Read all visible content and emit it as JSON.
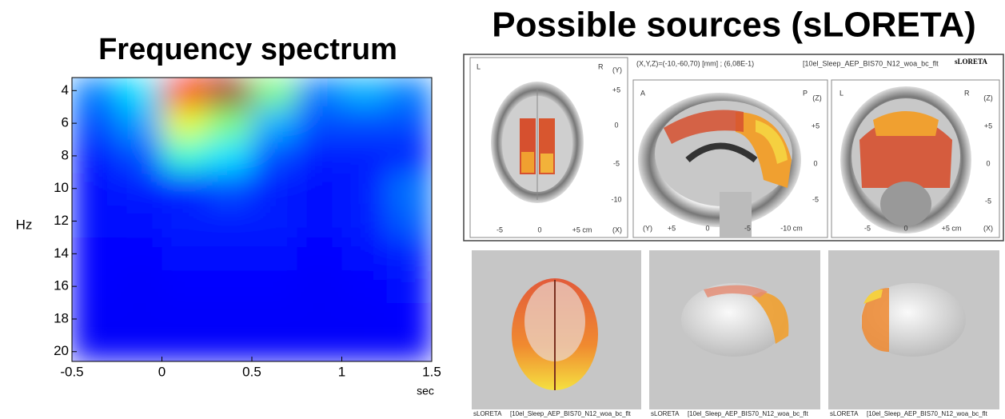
{
  "chart_data": {
    "type": "heatmap",
    "title": "Frequency spectrum",
    "xlabel": "sec",
    "ylabel": "Hz",
    "colormap": "jet",
    "y_inverted": true,
    "xlim": [
      -0.5,
      1.5
    ],
    "xticks": [
      -0.5,
      0,
      0.5,
      1,
      1.5
    ],
    "ylim": [
      3.2,
      20.6
    ],
    "yticks": [
      4,
      6,
      8,
      10,
      12,
      14,
      16,
      18,
      20
    ],
    "xbins": [
      -0.5,
      -0.25,
      0,
      0.25,
      0.5,
      0.75,
      1,
      1.25,
      1.5
    ],
    "ybins": [
      3.2,
      5,
      7,
      9,
      11,
      13,
      15,
      17,
      19,
      20.6
    ],
    "z": [
      [
        0.25,
        0.35,
        0.85,
        0.97,
        0.5,
        0.25,
        0.3,
        0.25
      ],
      [
        0.2,
        0.28,
        0.6,
        0.5,
        0.3,
        0.2,
        0.2,
        0.2
      ],
      [
        0.15,
        0.2,
        0.42,
        0.35,
        0.2,
        0.15,
        0.15,
        0.15
      ],
      [
        0.14,
        0.15,
        0.16,
        0.2,
        0.15,
        0.14,
        0.15,
        0.24
      ],
      [
        0.14,
        0.14,
        0.15,
        0.15,
        0.15,
        0.14,
        0.15,
        0.22
      ],
      [
        0.13,
        0.13,
        0.14,
        0.14,
        0.14,
        0.13,
        0.14,
        0.16
      ],
      [
        0.13,
        0.12,
        0.13,
        0.13,
        0.13,
        0.12,
        0.13,
        0.14
      ],
      [
        0.12,
        0.12,
        0.12,
        0.12,
        0.12,
        0.12,
        0.12,
        0.13
      ],
      [
        0.12,
        0.12,
        0.12,
        0.12,
        0.12,
        0.12,
        0.12,
        0.12
      ]
    ]
  },
  "sloreta": {
    "title": "Possible sources (sLORETA)",
    "header": {
      "coords": "(X,Y,Z)=(-10,-60,70) [mm] ; (6,08E-1)",
      "file": "[10el_Sleep_AEP_BIS70_N12_woa_bc_flt",
      "logo": "sLORETA"
    },
    "slices": [
      {
        "corner_left": "L",
        "corner_right": "R",
        "axis_right": "(Y)",
        "right_ticks": [
          "+5",
          "0",
          "-5",
          "-10"
        ],
        "bottom_ticks": [
          "-5",
          "0",
          "+5 cm"
        ],
        "axis_bottom": "(X)"
      },
      {
        "corner_left": "A",
        "corner_right": "P",
        "axis_right": "(Z)",
        "right_ticks": [
          "+5",
          "0",
          "-5"
        ],
        "bottom_ticks": [
          "+5",
          "0",
          "-5",
          "-10 cm"
        ],
        "axis_bottom": "(Y)"
      },
      {
        "corner_left": "L",
        "corner_right": "R",
        "axis_right": "(Z)",
        "right_ticks": [
          "+5",
          "0",
          "-5"
        ],
        "bottom_ticks": [
          "-5",
          "0",
          "+5 cm"
        ],
        "axis_bottom": "(X)"
      }
    ],
    "renders": [
      {
        "logo": "sLORETA",
        "file": "[10el_Sleep_AEP_BIS70_N12_woa_bc_flt"
      },
      {
        "logo": "sLORETA",
        "file": "[10el_Sleep_AEP_BIS70_N12_woa_bc_flt"
      },
      {
        "logo": "sLORETA",
        "file": "[10el_Sleep_AEP_BIS70_N12_woa_bc_flt"
      }
    ]
  }
}
